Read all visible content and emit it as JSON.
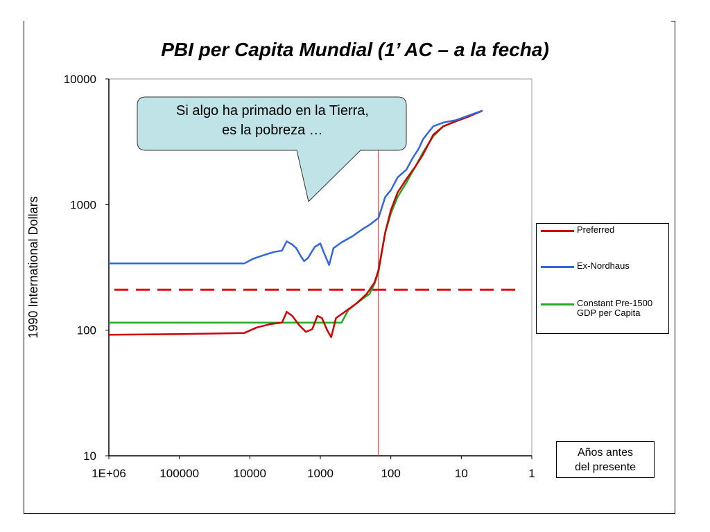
{
  "title": "PBI per Capita Mundial (1’ AC – a la fecha)",
  "callout": {
    "text": "Si algo ha primado en la Tierra,\nes la pobreza …"
  },
  "note": {
    "text": "Años antes\ndel presente"
  },
  "colors": {
    "preferred": "#cc0000",
    "ex_nordhaus": "#3366dd",
    "constant": "#22aa22",
    "dashed_line": "#dd1111",
    "vertical_line": "#dd2222",
    "callout_fill": "#bfe3e6"
  },
  "chart_data": {
    "type": "line",
    "title": "PBI per Capita Mundial (1’ AC – a la fecha)",
    "ylabel": "1990 International Dollars",
    "xlabel": "",
    "xscale": "log-reversed",
    "yscale": "log",
    "xlim": [
      1000000,
      1
    ],
    "ylim": [
      10,
      10000
    ],
    "x_ticks": [
      {
        "value": 1000000,
        "label": "1E+06"
      },
      {
        "value": 100000,
        "label": "100000"
      },
      {
        "value": 10000,
        "label": "10000"
      },
      {
        "value": 1000,
        "label": "1000"
      },
      {
        "value": 100,
        "label": "100"
      },
      {
        "value": 10,
        "label": "10"
      },
      {
        "value": 1,
        "label": "1"
      }
    ],
    "y_ticks": [
      {
        "value": 10000,
        "label": "10000"
      },
      {
        "value": 1000,
        "label": "1000"
      },
      {
        "value": 100,
        "label": "100"
      },
      {
        "value": 10,
        "label": "10"
      }
    ],
    "grid": false,
    "legend_position": "right",
    "reference_lines": {
      "horizontal_dashed_y": 210,
      "vertical_x": 150
    },
    "series": [
      {
        "name": "Preferred",
        "color": "#cc0000",
        "points": [
          [
            1000000,
            92
          ],
          [
            120000,
            93
          ],
          [
            12000,
            95
          ],
          [
            8000,
            105
          ],
          [
            5000,
            112
          ],
          [
            3500,
            115
          ],
          [
            3000,
            140
          ],
          [
            2500,
            130
          ],
          [
            2000,
            110
          ],
          [
            1600,
            97
          ],
          [
            1300,
            102
          ],
          [
            1100,
            130
          ],
          [
            950,
            125
          ],
          [
            800,
            100
          ],
          [
            700,
            88
          ],
          [
            600,
            125
          ],
          [
            450,
            140
          ],
          [
            300,
            165
          ],
          [
            220,
            195
          ],
          [
            200,
            210
          ],
          [
            170,
            240
          ],
          [
            150,
            300
          ],
          [
            120,
            600
          ],
          [
            100,
            900
          ],
          [
            80,
            1250
          ],
          [
            60,
            1600
          ],
          [
            45,
            2000
          ],
          [
            35,
            2500
          ],
          [
            25,
            3600
          ],
          [
            18,
            4200
          ],
          [
            12,
            4600
          ],
          [
            8,
            5000
          ],
          [
            5,
            5600
          ]
        ]
      },
      {
        "name": "Ex-Nordhaus",
        "color": "#3366dd",
        "points": [
          [
            1000000,
            340
          ],
          [
            12000,
            340
          ],
          [
            9000,
            370
          ],
          [
            6000,
            400
          ],
          [
            4500,
            420
          ],
          [
            3500,
            430
          ],
          [
            3000,
            510
          ],
          [
            2500,
            480
          ],
          [
            2200,
            450
          ],
          [
            1900,
            390
          ],
          [
            1700,
            355
          ],
          [
            1500,
            375
          ],
          [
            1200,
            460
          ],
          [
            1000,
            490
          ],
          [
            900,
            420
          ],
          [
            750,
            330
          ],
          [
            650,
            450
          ],
          [
            500,
            500
          ],
          [
            350,
            560
          ],
          [
            250,
            640
          ],
          [
            200,
            690
          ],
          [
            160,
            760
          ],
          [
            150,
            780
          ],
          [
            120,
            1150
          ],
          [
            100,
            1300
          ],
          [
            80,
            1650
          ],
          [
            60,
            1900
          ],
          [
            50,
            2300
          ],
          [
            40,
            2800
          ],
          [
            35,
            3300
          ],
          [
            30,
            3700
          ],
          [
            25,
            4200
          ],
          [
            18,
            4500
          ],
          [
            12,
            4700
          ],
          [
            8,
            5100
          ],
          [
            5,
            5600
          ]
        ]
      },
      {
        "name": "Constant Pre-1500 GDP per Capita",
        "color": "#22aa22",
        "points": [
          [
            1000000,
            115
          ],
          [
            500,
            115
          ],
          [
            400,
            145
          ],
          [
            300,
            165
          ],
          [
            200,
            195
          ],
          [
            170,
            235
          ],
          [
            150,
            290
          ],
          [
            120,
            600
          ],
          [
            100,
            850
          ],
          [
            80,
            1150
          ],
          [
            60,
            1500
          ],
          [
            45,
            2000
          ],
          [
            35,
            2600
          ],
          [
            25,
            3500
          ],
          [
            18,
            4200
          ],
          [
            12,
            4600
          ],
          [
            8,
            5000
          ],
          [
            5,
            5600
          ]
        ]
      }
    ]
  }
}
